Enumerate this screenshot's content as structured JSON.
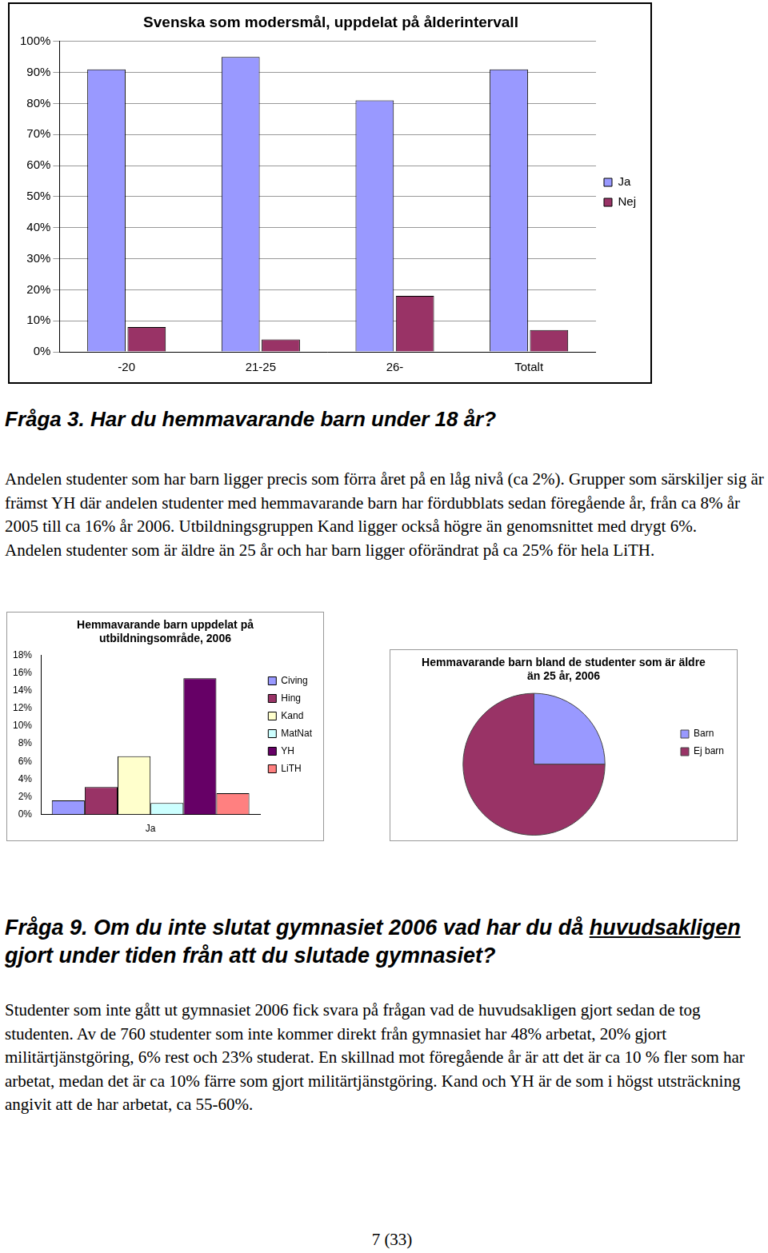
{
  "chart_data": [
    {
      "type": "bar",
      "title": "Svenska som modersmål, uppdelat på ålderintervall",
      "categories": [
        "-20",
        "21-25",
        "26-",
        "Totalt"
      ],
      "series": [
        {
          "name": "Ja",
          "color": "#9999ff",
          "values": [
            91,
            95,
            81,
            91
          ]
        },
        {
          "name": "Nej",
          "color": "#993366",
          "values": [
            8,
            4,
            18,
            7
          ]
        }
      ],
      "ylim": [
        0,
        100
      ],
      "yticks": [
        {
          "value": 0,
          "label": "0%"
        },
        {
          "value": 10,
          "label": "10%"
        },
        {
          "value": 20,
          "label": "20%"
        },
        {
          "value": 30,
          "label": "30%"
        },
        {
          "value": 40,
          "label": "40%"
        },
        {
          "value": 50,
          "label": "50%"
        },
        {
          "value": 60,
          "label": "60%"
        },
        {
          "value": 70,
          "label": "70%"
        },
        {
          "value": 80,
          "label": "80%"
        },
        {
          "value": 90,
          "label": "90%"
        },
        {
          "value": 100,
          "label": "100%"
        }
      ],
      "grid": true,
      "legend": "right"
    },
    {
      "type": "bar",
      "title": "Hemmavarande barn uppdelat på utbildningsområde, 2006",
      "categories": [
        "Ja"
      ],
      "series": [
        {
          "name": "Civing",
          "color": "#9999ff",
          "values": [
            1.6
          ]
        },
        {
          "name": "Hing",
          "color": "#993366",
          "values": [
            3.1
          ]
        },
        {
          "name": "Kand",
          "color": "#ffffcc",
          "values": [
            6.6
          ]
        },
        {
          "name": "MatNat",
          "color": "#ccffff",
          "values": [
            1.3
          ]
        },
        {
          "name": "YH",
          "color": "#660066",
          "values": [
            15.4
          ]
        },
        {
          "name": "LiTH",
          "color": "#ff8080",
          "values": [
            2.4
          ]
        }
      ],
      "ylim": [
        0,
        18
      ],
      "yticks": [
        {
          "value": 0,
          "label": "0%"
        },
        {
          "value": 2,
          "label": "2%"
        },
        {
          "value": 4,
          "label": "4%"
        },
        {
          "value": 6,
          "label": "6%"
        },
        {
          "value": 8,
          "label": "8%"
        },
        {
          "value": 10,
          "label": "10%"
        },
        {
          "value": 12,
          "label": "12%"
        },
        {
          "value": 14,
          "label": "14%"
        },
        {
          "value": 16,
          "label": "16%"
        },
        {
          "value": 18,
          "label": "18%"
        }
      ],
      "grid": false,
      "legend": "right"
    },
    {
      "type": "pie",
      "title": "Hemmavarande barn bland de studenter som är äldre än 25 år, 2006",
      "categories": [
        "Barn",
        "Ej barn"
      ],
      "values": [
        25,
        75
      ],
      "colors": [
        "#9999ff",
        "#993366"
      ],
      "legend": "right"
    }
  ],
  "document": {
    "heading_q3": "Fråga 3. Har du hemmavarande barn under 18 år?",
    "paragraphs_q3": [
      "Andelen studenter som har barn ligger precis som förra året på en låg nivå (ca 2%). Grupper som särskiljer sig är främst YH där andelen studenter med hemmavarande barn har fördubblats sedan föregående år, från ca 8% år 2005 till ca 16% år 2006. Utbildningsgruppen Kand ligger också högre än genomsnittet med drygt 6%.",
      "Andelen studenter som är äldre än 25 år och har barn ligger oförändrat på ca 25% för hela LiTH."
    ],
    "heading_q9": {
      "before": "Fråga 9. Om du inte slutat gymnasiet 2006 vad har du då ",
      "underlined": "huvudsakligen",
      "after": " gjort under tiden från att du slutade gymnasiet?"
    },
    "paragraph_q9": "Studenter som inte gått ut gymnasiet 2006 fick svara på frågan vad de huvudsakligen gjort sedan de tog studenten. Av de 760 studenter som inte kommer direkt från gymnasiet har 48% arbetat, 20% gjort militärtjänstgöring, 6% rest och 23% studerat. En skillnad mot föregående år är att det är ca 10 % fler som har arbetat, medan det är ca 10% färre som gjort militärtjänstgöring. Kand och YH är de som i högst utsträckning angivit att de har arbetat, ca 55-60%.",
    "footer": "7 (33)"
  }
}
